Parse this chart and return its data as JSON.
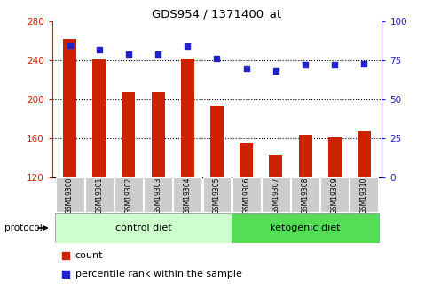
{
  "title": "GDS954 / 1371400_at",
  "samples": [
    "GSM19300",
    "GSM19301",
    "GSM19302",
    "GSM19303",
    "GSM19304",
    "GSM19305",
    "GSM19306",
    "GSM19307",
    "GSM19308",
    "GSM19309",
    "GSM19310"
  ],
  "counts": [
    262,
    241,
    207,
    207,
    242,
    194,
    156,
    143,
    164,
    161,
    167
  ],
  "percentile_ranks": [
    85,
    82,
    79,
    79,
    84,
    76,
    70,
    68,
    72,
    72,
    73
  ],
  "ylim_left": [
    120,
    280
  ],
  "ylim_right": [
    0,
    100
  ],
  "yticks_left": [
    120,
    160,
    200,
    240,
    280
  ],
  "yticks_right": [
    0,
    25,
    50,
    75,
    100
  ],
  "bar_color": "#cc2200",
  "dot_color": "#2222cc",
  "control_group_count": 6,
  "ketogenic_group_count": 5,
  "control_label": "control diet",
  "ketogenic_label": "ketogenic diet",
  "protocol_label": "protocol",
  "legend_count": "count",
  "legend_percentile": "percentile rank within the sample",
  "control_color": "#ccffcc",
  "ketogenic_color": "#55dd55",
  "tick_bg_color": "#cccccc",
  "grid_yticks": [
    160,
    200,
    240
  ]
}
